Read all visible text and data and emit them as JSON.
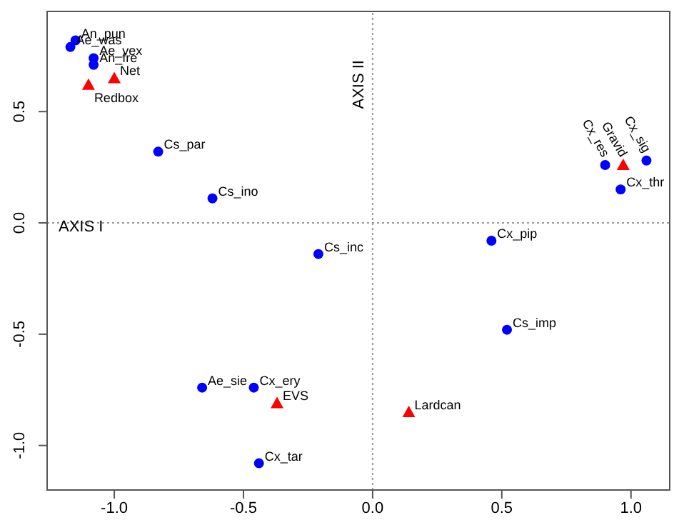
{
  "chart_data": {
    "type": "scatter",
    "xlim": [
      -1.26,
      1.15
    ],
    "ylim": [
      -1.2,
      0.95
    ],
    "xticks": [
      {
        "value": -1,
        "label": "-1.0"
      },
      {
        "value": -0.5,
        "label": "-0.5"
      },
      {
        "value": 0,
        "label": "0.0"
      },
      {
        "value": 0.5,
        "label": "0.5"
      },
      {
        "value": 1,
        "label": "1.0"
      }
    ],
    "yticks": [
      {
        "value": -1,
        "label": "-1.0"
      },
      {
        "value": -0.5,
        "label": "-0.5"
      },
      {
        "value": 0,
        "label": "0.0"
      },
      {
        "value": 0.5,
        "label": "0.5"
      }
    ],
    "series": [
      {
        "color": "#0000ff",
        "marker": "circle",
        "x": [
          -1.15,
          -1.17,
          -1.08,
          -1.08,
          -0.83,
          -0.62,
          -0.21,
          0.9,
          1.06,
          0.96,
          0.46,
          0.52,
          -0.66,
          -0.46,
          -0.44
        ],
        "values": [
          0.82,
          0.79,
          0.74,
          0.71,
          0.32,
          0.11,
          -0.14,
          0.26,
          0.28,
          0.15,
          -0.08,
          -0.48,
          -0.74,
          -0.74,
          -1.08
        ]
      },
      {
        "color": "#ff0000",
        "marker": "triangle",
        "x": [
          -1.0,
          -1.1,
          0.97,
          -0.37,
          0.14
        ],
        "values": [
          0.65,
          0.62,
          0.26,
          -0.81,
          -0.85
        ]
      }
    ],
    "ref_lines": [
      {
        "axis": "y",
        "value": 0,
        "label": "AXIS I",
        "color": "#999999",
        "line_style": "dotted"
      },
      {
        "axis": "x",
        "value": 0,
        "label": "AXIS II",
        "color": "#999999",
        "line_style": "dotted"
      }
    ],
    "annotations": [
      {
        "text": "An_pun",
        "x": -1.15,
        "y": 0.82
      },
      {
        "text": "Ae_was",
        "x": -1.17,
        "y": 0.79
      },
      {
        "text": "Ae_vex",
        "x": -1.08,
        "y": 0.74
      },
      {
        "text": "An_fre",
        "x": -1.08,
        "y": 0.71
      },
      {
        "text": "Net",
        "x": -1.0,
        "y": 0.65
      },
      {
        "text": "Redbox",
        "x": -1.1,
        "y": 0.62
      },
      {
        "text": "Cs_par",
        "x": -0.83,
        "y": 0.32
      },
      {
        "text": "Cs_ino",
        "x": -0.62,
        "y": 0.11
      },
      {
        "text": "Cs_inc",
        "x": -0.21,
        "y": -0.14
      },
      {
        "text": "Cx_res",
        "x": 0.9,
        "y": 0.26
      },
      {
        "text": "Gravid",
        "x": 0.97,
        "y": 0.26
      },
      {
        "text": "Cx_sig",
        "x": 1.06,
        "y": 0.28
      },
      {
        "text": "Cx_thr",
        "x": 0.96,
        "y": 0.15
      },
      {
        "text": "Cx_pip",
        "x": 0.46,
        "y": -0.08
      },
      {
        "text": "Cs_imp",
        "x": 0.52,
        "y": -0.48
      },
      {
        "text": "Lardcan",
        "x": 0.14,
        "y": -0.85
      },
      {
        "text": "Ae_sie",
        "x": -0.66,
        "y": -0.74
      },
      {
        "text": "Cx_ery",
        "x": -0.46,
        "y": -0.74
      },
      {
        "text": "EVS",
        "x": -0.37,
        "y": -0.81
      },
      {
        "text": "Cx_tar",
        "x": -0.44,
        "y": -1.08
      }
    ]
  }
}
